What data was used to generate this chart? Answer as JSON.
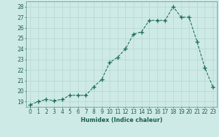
{
  "x": [
    0,
    1,
    2,
    3,
    4,
    5,
    6,
    7,
    8,
    9,
    10,
    11,
    12,
    13,
    14,
    15,
    16,
    17,
    18,
    19,
    20,
    21,
    22,
    23
  ],
  "y": [
    18.7,
    19.0,
    19.2,
    19.1,
    19.2,
    19.6,
    19.6,
    19.6,
    20.4,
    21.1,
    22.7,
    23.2,
    24.0,
    25.4,
    25.6,
    26.7,
    26.7,
    26.7,
    28.0,
    27.0,
    27.0,
    24.7,
    22.2,
    20.4
  ],
  "line_color": "#1a6b5a",
  "marker": "+",
  "marker_size": 4,
  "bg_color": "#ceeae6",
  "grid_color": "#b0ceca",
  "xlabel": "Humidex (Indice chaleur)",
  "ylabel_ticks": [
    19,
    20,
    21,
    22,
    23,
    24,
    25,
    26,
    27,
    28
  ],
  "xlim": [
    -0.5,
    23.5
  ],
  "ylim": [
    18.5,
    28.5
  ],
  "xtick_labels": [
    "0",
    "1",
    "2",
    "3",
    "4",
    "5",
    "6",
    "7",
    "8",
    "9",
    "10",
    "11",
    "12",
    "13",
    "14",
    "15",
    "16",
    "17",
    "18",
    "19",
    "20",
    "21",
    "22",
    "23"
  ],
  "axis_fontsize": 6.0,
  "tick_fontsize": 5.5,
  "line_width": 0.8,
  "marker_thickness": 1.0
}
